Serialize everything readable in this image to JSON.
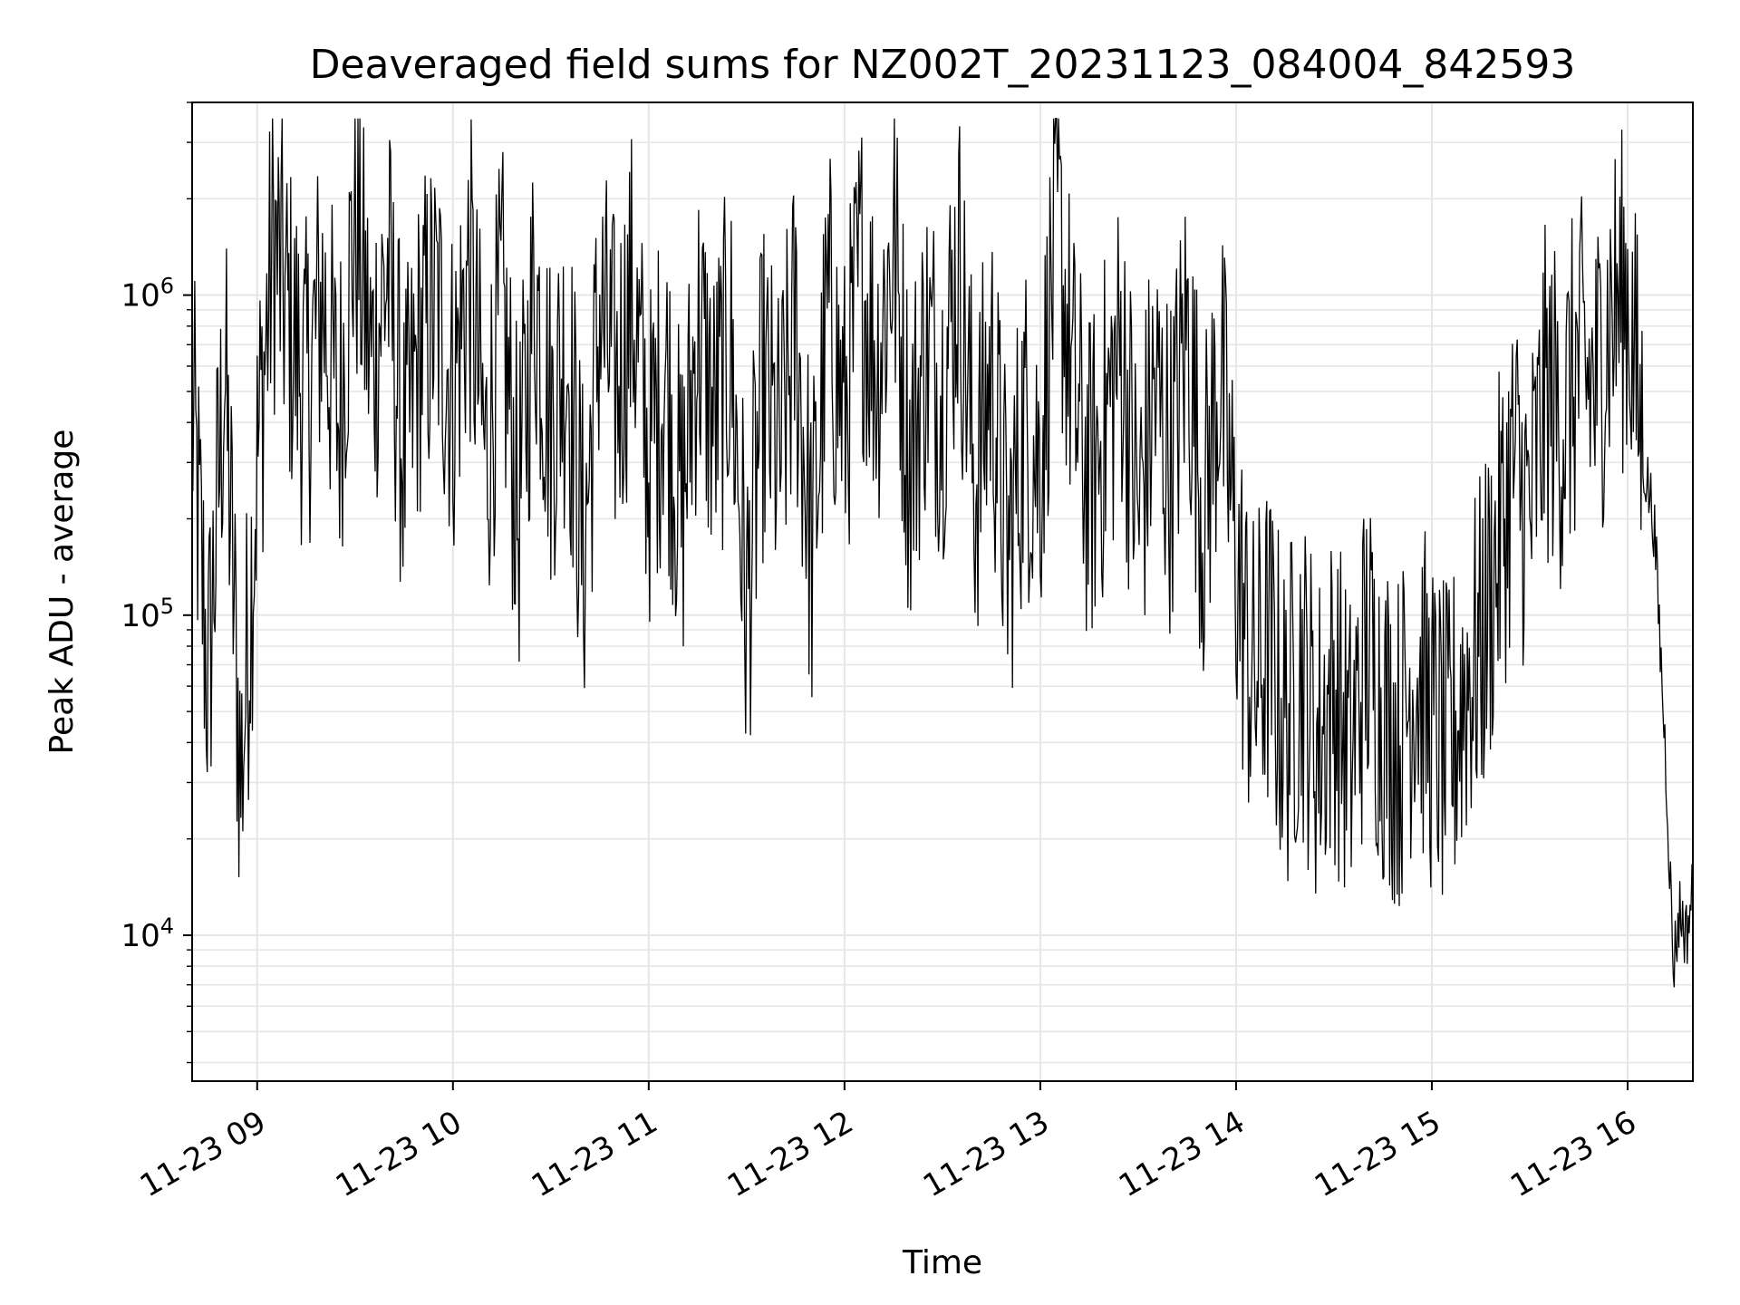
{
  "chart_data": {
    "type": "line",
    "title": "Deaveraged field sums for NZ002T_20231123_084004_842593",
    "xlabel": "Time",
    "ylabel": "Peak ADU - average",
    "yscale": "log",
    "ylim": [
      3500,
      4000000
    ],
    "xlim": [
      "2023-11-23 08:40:04",
      "2023-11-23 16:20:00"
    ],
    "grid": true,
    "line_color": "#000000",
    "grid_color": "#e6e6e6",
    "x_ticks": [
      {
        "value": "2023-11-23 09:00",
        "label": "11-23 09"
      },
      {
        "value": "2023-11-23 10:00",
        "label": "11-23 10"
      },
      {
        "value": "2023-11-23 11:00",
        "label": "11-23 11"
      },
      {
        "value": "2023-11-23 12:00",
        "label": "11-23 12"
      },
      {
        "value": "2023-11-23 13:00",
        "label": "11-23 13"
      },
      {
        "value": "2023-11-23 14:00",
        "label": "11-23 14"
      },
      {
        "value": "2023-11-23 15:00",
        "label": "11-23 15"
      },
      {
        "value": "2023-11-23 16:00",
        "label": "11-23 16"
      }
    ],
    "y_ticks": [
      {
        "value": 10000,
        "base": "10",
        "exp": "4"
      },
      {
        "value": 100000,
        "base": "10",
        "exp": "5"
      },
      {
        "value": 1000000,
        "base": "10",
        "exp": "6"
      }
    ],
    "series": [
      {
        "name": "",
        "x": [
          "2023-11-23 08:40",
          "2023-11-23 08:45",
          "2023-11-23 08:50",
          "2023-11-23 08:55",
          "2023-11-23 09:00",
          "2023-11-23 09:05",
          "2023-11-23 09:10",
          "2023-11-23 09:15",
          "2023-11-23 09:20",
          "2023-11-23 09:25",
          "2023-11-23 09:30",
          "2023-11-23 09:35",
          "2023-11-23 09:40",
          "2023-11-23 09:45",
          "2023-11-23 09:50",
          "2023-11-23 09:55",
          "2023-11-23 10:00",
          "2023-11-23 10:05",
          "2023-11-23 10:10",
          "2023-11-23 10:15",
          "2023-11-23 10:20",
          "2023-11-23 10:25",
          "2023-11-23 10:30",
          "2023-11-23 10:35",
          "2023-11-23 10:40",
          "2023-11-23 10:45",
          "2023-11-23 10:50",
          "2023-11-23 10:55",
          "2023-11-23 11:00",
          "2023-11-23 11:05",
          "2023-11-23 11:10",
          "2023-11-23 11:15",
          "2023-11-23 11:20",
          "2023-11-23 11:25",
          "2023-11-23 11:30",
          "2023-11-23 11:35",
          "2023-11-23 11:40",
          "2023-11-23 11:45",
          "2023-11-23 11:50",
          "2023-11-23 11:55",
          "2023-11-23 12:00",
          "2023-11-23 12:05",
          "2023-11-23 12:10",
          "2023-11-23 12:15",
          "2023-11-23 12:20",
          "2023-11-23 12:25",
          "2023-11-23 12:30",
          "2023-11-23 12:35",
          "2023-11-23 12:40",
          "2023-11-23 12:45",
          "2023-11-23 12:50",
          "2023-11-23 12:55",
          "2023-11-23 13:00",
          "2023-11-23 13:05",
          "2023-11-23 13:10",
          "2023-11-23 13:15",
          "2023-11-23 13:20",
          "2023-11-23 13:25",
          "2023-11-23 13:30",
          "2023-11-23 13:35",
          "2023-11-23 13:40",
          "2023-11-23 13:45",
          "2023-11-23 13:50",
          "2023-11-23 13:55",
          "2023-11-23 14:00",
          "2023-11-23 14:05",
          "2023-11-23 14:10",
          "2023-11-23 14:15",
          "2023-11-23 14:20",
          "2023-11-23 14:25",
          "2023-11-23 14:30",
          "2023-11-23 14:35",
          "2023-11-23 14:40",
          "2023-11-23 14:45",
          "2023-11-23 14:50",
          "2023-11-23 14:55",
          "2023-11-23 15:00",
          "2023-11-23 15:05",
          "2023-11-23 15:10",
          "2023-11-23 15:15",
          "2023-11-23 15:20",
          "2023-11-23 15:25",
          "2023-11-23 15:30",
          "2023-11-23 15:35",
          "2023-11-23 15:40",
          "2023-11-23 15:45",
          "2023-11-23 15:50",
          "2023-11-23 15:55",
          "2023-11-23 16:00",
          "2023-11-23 16:05",
          "2023-11-23 16:08",
          "2023-11-23 16:10",
          "2023-11-23 16:12",
          "2023-11-23 16:14",
          "2023-11-23 16:16",
          "2023-11-23 16:18",
          "2023-11-23 16:20"
        ],
        "y": [
          450000,
          60000,
          600000,
          30000,
          300000,
          1500000,
          800000,
          500000,
          1000000,
          400000,
          1800000,
          600000,
          1200000,
          300000,
          700000,
          900000,
          500000,
          1200000,
          300000,
          900000,
          200000,
          1100000,
          400000,
          700000,
          150000,
          900000,
          500000,
          1000000,
          300000,
          600000,
          200000,
          800000,
          400000,
          700000,
          100000,
          500000,
          300000,
          800000,
          150000,
          900000,
          400000,
          1200000,
          600000,
          1500000,
          300000,
          700000,
          500000,
          1300000,
          250000,
          600000,
          150000,
          400000,
          300000,
          1800000,
          500000,
          250000,
          400000,
          700000,
          200000,
          500000,
          300000,
          800000,
          200000,
          600000,
          150000,
          60000,
          80000,
          45000,
          70000,
          40000,
          60000,
          35000,
          80000,
          50000,
          40000,
          70000,
          45000,
          35000,
          60000,
          80000,
          150000,
          300000,
          200000,
          500000,
          400000,
          600000,
          500000,
          900000,
          1000000,
          300000,
          200000,
          80000,
          30000,
          8000,
          12000,
          10000,
          14000
        ]
      }
    ]
  }
}
